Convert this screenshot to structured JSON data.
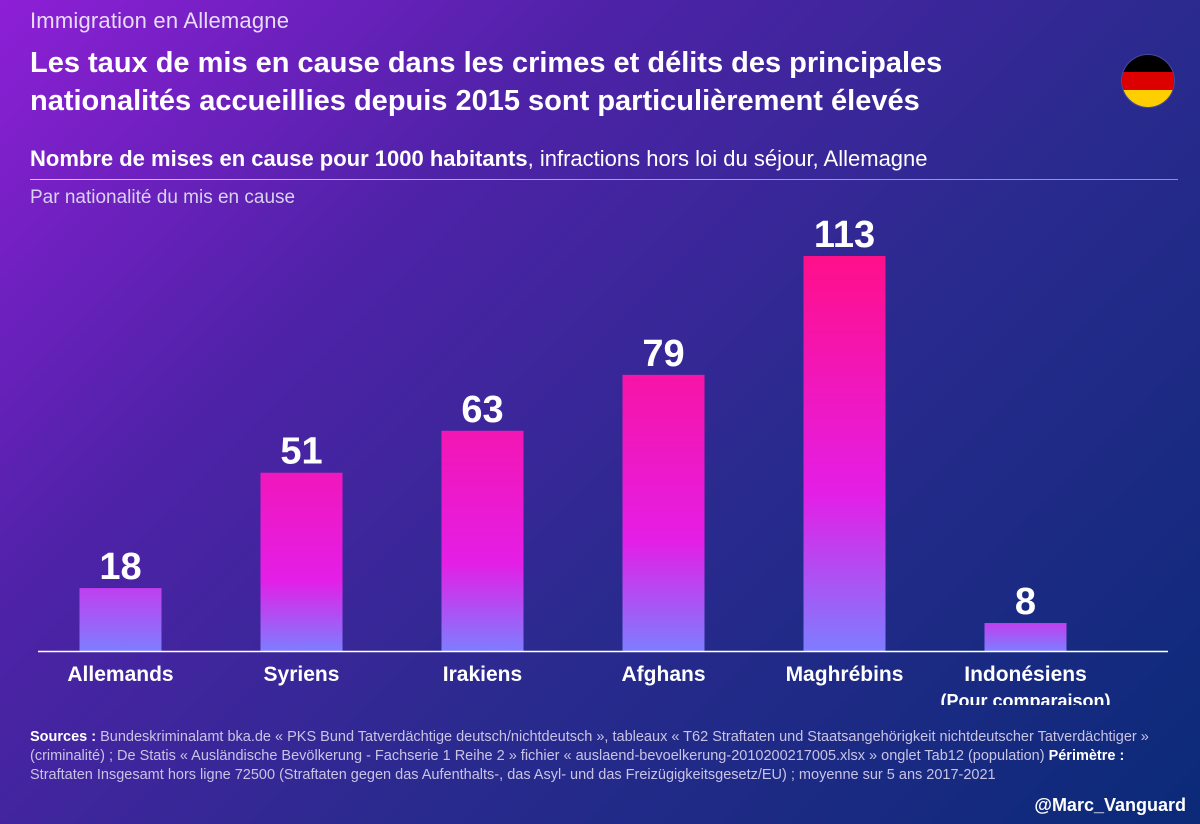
{
  "header": {
    "kicker": "Immigration en Allemagne",
    "title": "Les taux de mis en cause dans les crimes et délits des principales nationalités accueillies depuis 2015 sont particulièrement élevés",
    "subtitle_bold": "Nombre de mises en cause pour 1000 habitants",
    "subtitle_rest": ", infractions hors loi du séjour, Allemagne",
    "note": "Par nationalité du mis en cause"
  },
  "flag": {
    "colors": [
      "#000000",
      "#dd0000",
      "#ffce00"
    ]
  },
  "chart_data": {
    "type": "bar",
    "categories": [
      "Allemands",
      "Syriens",
      "Irakiens",
      "Afghans",
      "Maghrébins",
      "Indonésiens"
    ],
    "category_sublabels": [
      "",
      "",
      "",
      "",
      "",
      "(Pour comparaison)"
    ],
    "values": [
      18,
      51,
      63,
      79,
      113,
      8
    ],
    "ylim": [
      0,
      113
    ],
    "grid": false,
    "colors": {
      "top_high": "#ff0f8a",
      "top_mid": "#e41ee6",
      "bottom": "#7e7dff",
      "axis": "#ffffff"
    }
  },
  "footer": {
    "sources_label": "Sources :",
    "sources_text_1": " Bundeskriminalamt bka.de « PKS Bund Tatverdächtige deutsch/nichtdeutsch », tableaux « T62 Straftaten und Staatsangehörigkeit nichtdeutscher Tatverdächtiger » (criminalité) ; De Statis « Ausländische Bevölkerung - Fachserie 1 Reihe 2 » fichier « auslaend-bevoelkerung-2010200217005.xlsx » onglet Tab12 (population) ",
    "perimetre_label": "Périmètre :",
    "sources_text_2": " Straftaten Insgesamt hors ligne 72500 (Straftaten gegen das Aufenthalts-, das Asyl- und das Freizügigkeitsgesetz/EU) ; moyenne sur 5 ans 2017-2021",
    "handle": "@Marc_Vanguard"
  }
}
